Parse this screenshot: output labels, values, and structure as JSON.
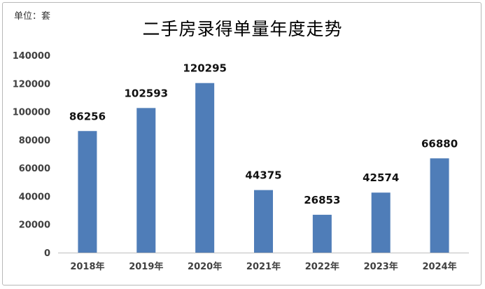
{
  "unit_label": "单位：套",
  "chart_data": {
    "type": "bar",
    "title": "二手房录得单量年度走势",
    "xlabel": "",
    "ylabel": "",
    "categories": [
      "2018年",
      "2019年",
      "2020年",
      "2021年",
      "2022年",
      "2023年",
      "2024年"
    ],
    "values": [
      86256,
      102593,
      120295,
      44375,
      26853,
      42574,
      66880
    ],
    "ylim": [
      0,
      140000
    ],
    "yticks": [
      0,
      20000,
      40000,
      60000,
      80000,
      100000,
      120000,
      140000
    ],
    "grid": false,
    "legend": "none",
    "bar_color": "#4f7db8",
    "axis_color": "#bfbfbf"
  }
}
